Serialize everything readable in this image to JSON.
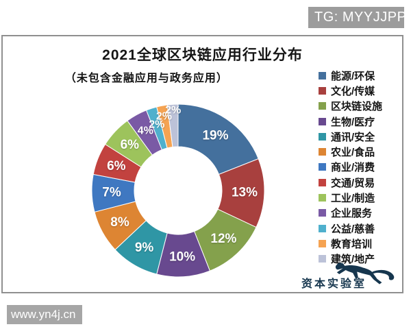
{
  "overlay": {
    "tg_badge": "TG: MYYJJPP",
    "watermark": "www.yn4j.cn"
  },
  "logo": {
    "text": "资本实验室"
  },
  "chart_data": {
    "type": "pie",
    "subtype": "donut",
    "title": "2021全球区块链应用行业分布",
    "subtitle": "（未包含金融应用与政务应用）",
    "unit": "%",
    "legend_position": "right",
    "start_angle": "12-oclock-clockwise",
    "categories": [
      "能源/环保",
      "文化/传媒",
      "区块链设施",
      "生物/医疗",
      "通讯/安全",
      "农业/食品",
      "商业/消费",
      "交通/贸易",
      "工业/制造",
      "企业服务",
      "公益/慈善",
      "教育培训",
      "建筑/地产"
    ],
    "values": [
      19,
      13,
      12,
      10,
      9,
      8,
      7,
      6,
      6,
      4,
      2,
      2,
      2
    ],
    "colors": [
      "#44709d",
      "#a8403e",
      "#84a14c",
      "#68498f",
      "#2f96a5",
      "#dd8533",
      "#3f78c1",
      "#c2423f",
      "#9dc35c",
      "#7a5aa5",
      "#4fb0cd",
      "#f5a352",
      "#bcc2d8"
    ]
  }
}
